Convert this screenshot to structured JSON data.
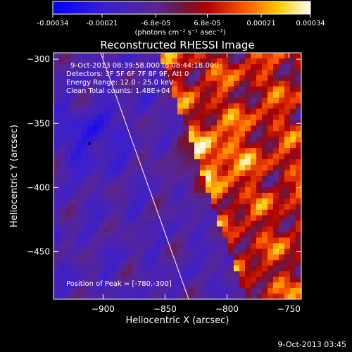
{
  "colorbar": {
    "ticks": [
      "-0.00034",
      "-0.00021",
      "-6.8e-05",
      "6.8e-05",
      "0.00021",
      "0.00034"
    ],
    "unit_text": "(photons cm⁻² s⁻¹ asec⁻²)",
    "range": [
      -0.00034,
      0.00034
    ]
  },
  "chart_data": {
    "type": "heatmap",
    "title": "Reconstructed RHESSI Image",
    "xlabel": "Heliocentric X (arcsec)",
    "ylabel": "Heliocentric Y (arcsec)",
    "xlim": [
      -940,
      -740
    ],
    "ylim": [
      -487,
      -295
    ],
    "x_ticks": [
      -900,
      -850,
      -800,
      -750
    ],
    "x_tick_labels": [
      "−900",
      "−850",
      "−800",
      "−750"
    ],
    "y_ticks": [
      -300,
      -350,
      -400,
      -450
    ],
    "y_tick_labels": [
      "−300",
      "−350",
      "−400",
      "−450"
    ],
    "annotations": [
      "9-Oct-2013 08:39:58.000 to 08:44:18.000",
      "Detectors: 3F 5F 6F 7F 8F 9F, Att 0",
      "Energy Range: 12.0 - 25.0 keV",
      "Clean    Total counts: 1.48E+04"
    ],
    "peak_label": "Position of Peak = [-780,-300]",
    "peak_position": [
      -780,
      -300
    ]
  },
  "footer": {
    "timestamp": "9-Oct-2013 03:45"
  }
}
